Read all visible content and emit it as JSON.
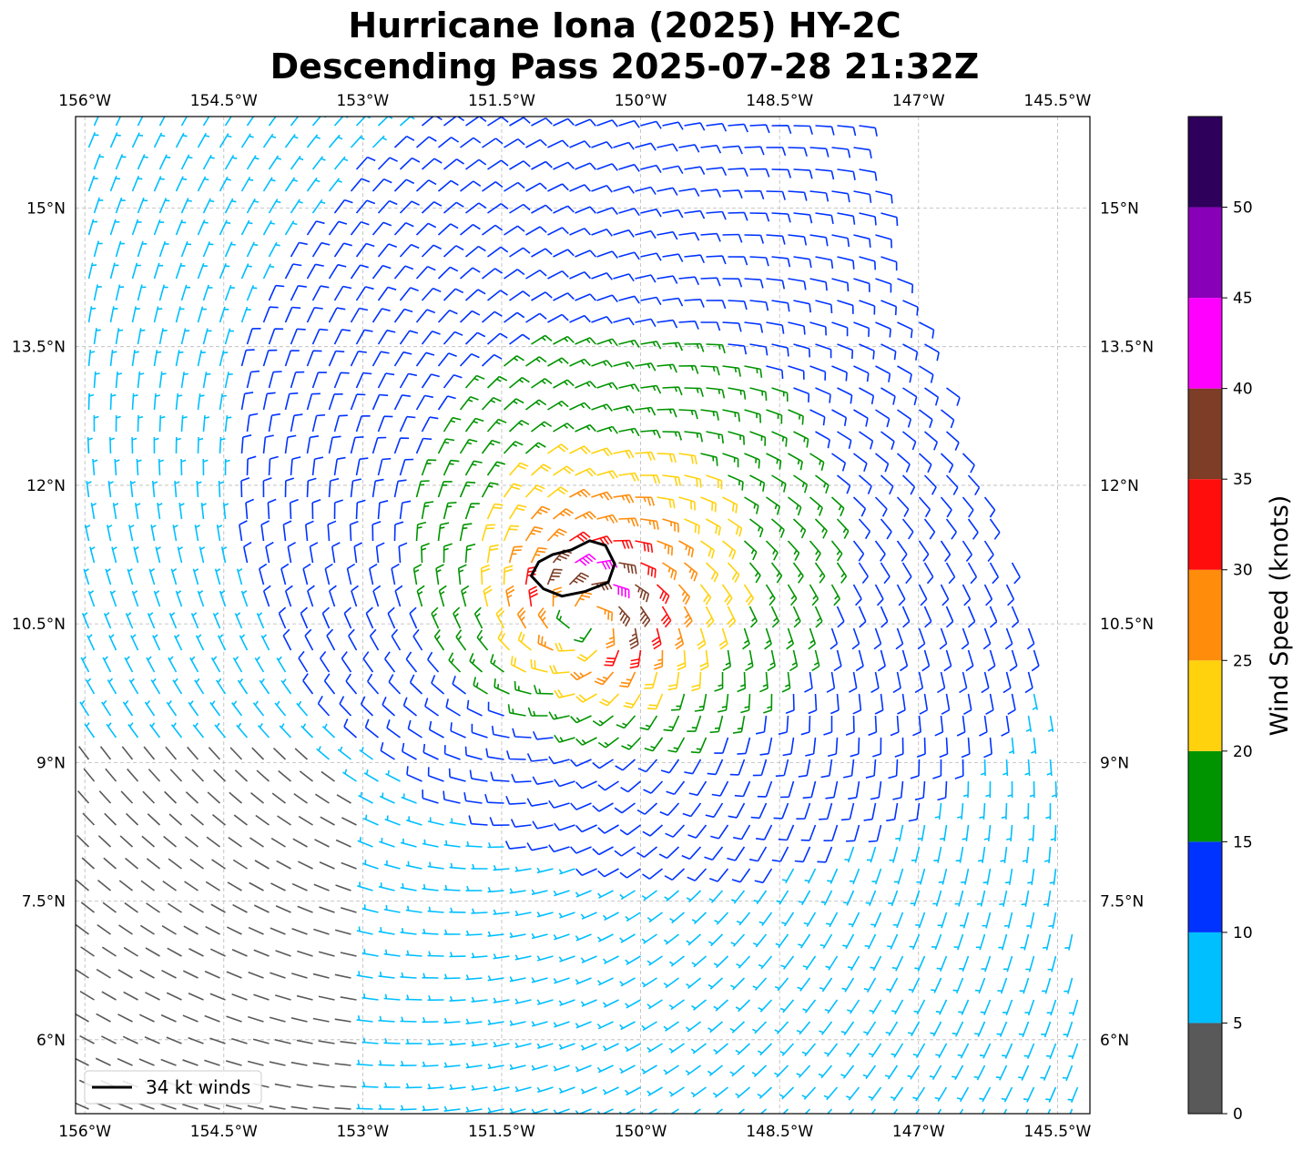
{
  "title": {
    "line1": "Hurricane Iona (2025) HY-2C",
    "line2": "Descending Pass 2025-07-28 21:32Z"
  },
  "map": {
    "lon_range": [
      -156.1,
      -145.15
    ],
    "lat_range": [
      5.2,
      15.99
    ],
    "lon_ticks": [
      {
        "value": -156.0,
        "label": "156°W"
      },
      {
        "value": -154.5,
        "label": "154.5°W"
      },
      {
        "value": -153.0,
        "label": "153°W"
      },
      {
        "value": -151.5,
        "label": "151.5°W"
      },
      {
        "value": -150.0,
        "label": "150°W"
      },
      {
        "value": -148.5,
        "label": "148.5°W"
      },
      {
        "value": -147.0,
        "label": "147°W"
      },
      {
        "value": -145.5,
        "label": "145.5°W"
      }
    ],
    "lat_ticks": [
      {
        "value": 15.0,
        "label": "15°N"
      },
      {
        "value": 13.5,
        "label": "13.5°N"
      },
      {
        "value": 12.0,
        "label": "12°N"
      },
      {
        "value": 10.5,
        "label": "10.5°N"
      },
      {
        "value": 9.0,
        "label": "9°N"
      },
      {
        "value": 7.5,
        "label": "7.5°N"
      },
      {
        "value": 6.0,
        "label": "6°N"
      }
    ],
    "gridlines": true,
    "storm_center": {
      "lon": -150.6,
      "lat": 10.55
    },
    "wind_34kt_contour": [
      {
        "lon": -150.75,
        "lat": 11.3
      },
      {
        "lon": -150.55,
        "lat": 11.4
      },
      {
        "lon": -150.38,
        "lat": 11.35
      },
      {
        "lon": -150.28,
        "lat": 11.15
      },
      {
        "lon": -150.35,
        "lat": 10.95
      },
      {
        "lon": -150.6,
        "lat": 10.85
      },
      {
        "lon": -150.85,
        "lat": 10.8
      },
      {
        "lon": -151.05,
        "lat": 10.88
      },
      {
        "lon": -151.18,
        "lat": 11.02
      },
      {
        "lon": -151.1,
        "lat": 11.17
      },
      {
        "lon": -150.95,
        "lat": 11.25
      },
      {
        "lon": -150.75,
        "lat": 11.3
      }
    ]
  },
  "legend": {
    "label": "34 kt winds",
    "location": "lower-left"
  },
  "colorbar": {
    "label": "Wind Speed (knots)",
    "ticks": [
      "0",
      "5",
      "10",
      "15",
      "20",
      "25",
      "30",
      "35",
      "40",
      "45",
      "50"
    ],
    "bins": [
      {
        "min": 0,
        "max": 5,
        "color": "#595959"
      },
      {
        "min": 5,
        "max": 10,
        "color": "#00bfff"
      },
      {
        "min": 10,
        "max": 15,
        "color": "#0033ff"
      },
      {
        "min": 15,
        "max": 20,
        "color": "#009400"
      },
      {
        "min": 20,
        "max": 25,
        "color": "#ffd20d"
      },
      {
        "min": 25,
        "max": 30,
        "color": "#ff8c0a"
      },
      {
        "min": 30,
        "max": 35,
        "color": "#ff0d0d"
      },
      {
        "min": 35,
        "max": 40,
        "color": "#7d3d26"
      },
      {
        "min": 40,
        "max": 45,
        "color": "#ff00ff"
      },
      {
        "min": 45,
        "max": 50,
        "color": "#8800b8"
      },
      {
        "min": 50,
        "max": 55,
        "color": "#2e005c"
      }
    ]
  }
}
